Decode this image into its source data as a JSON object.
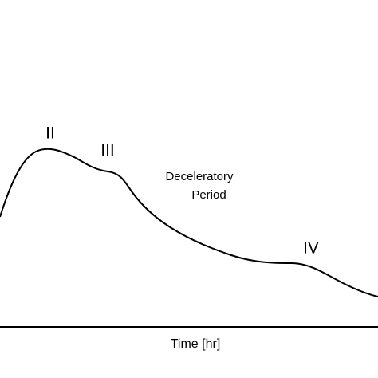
{
  "labels": {
    "peak": "II",
    "shoulder": "III",
    "late": "IV"
  },
  "annotation": {
    "line1": "Deceleratory",
    "line2": "Period"
  },
  "x_axis_label": "Time [hr]"
}
